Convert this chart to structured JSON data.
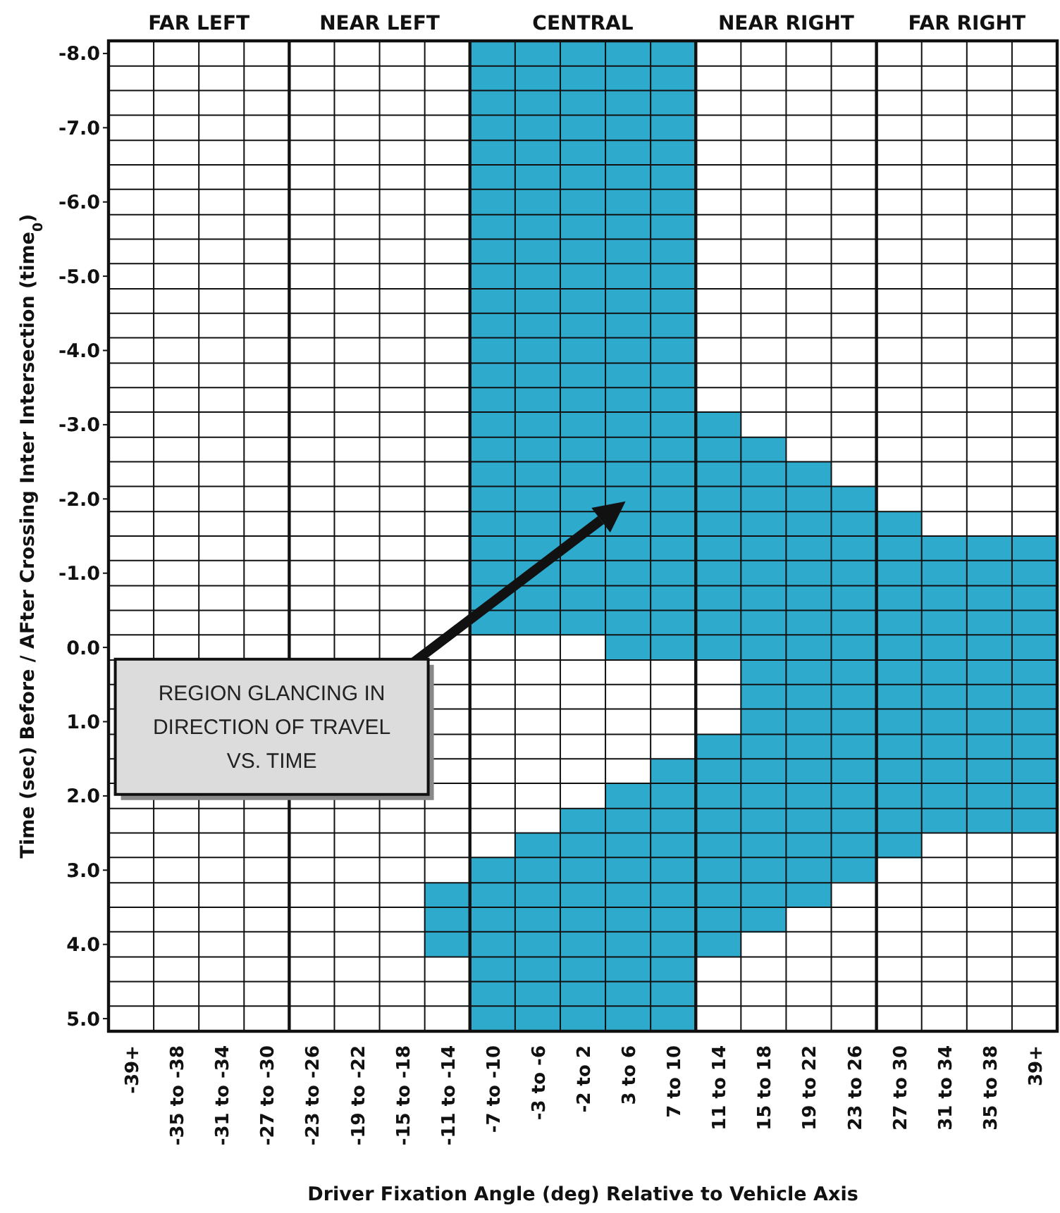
{
  "chart_data": {
    "type": "bar",
    "xlabel": "Driver Fixation Angle (deg) Relative to Vehicle Axis",
    "ylabel": "Time (sec) Before / AFter Crossing Inter Intersection (time$_{0}$)",
    "categories": [
      "-39+",
      "-35 to -38",
      "-31 to -34",
      "-27 to -30",
      "-23 to -26",
      "-19 to -22",
      "-15 to -18",
      "-11 to -14",
      "-7 to -10",
      "-3 to -6",
      "-2 to 2",
      "3 to 6",
      "7 to 10",
      "11 to 14",
      "15 to 18",
      "19 to 22",
      "23 to 26",
      "27 to 30",
      "31 to 34",
      "35 to 38",
      "39+"
    ],
    "series": [
      {
        "color": "#2eaacc",
        "values": [
          null,
          null,
          null,
          null,
          null,
          null,
          null,
          null,
          8.0,
          8.0,
          8.0,
          8.33,
          8.33,
          3.33,
          6.67,
          6.0,
          5.33,
          4.67,
          4.0,
          4.0,
          4.0
        ],
        "base": [
          null,
          null,
          null,
          null,
          null,
          null,
          null,
          null,
          -8.17,
          -8.17,
          -8.17,
          -8.17,
          -8.17,
          -3.17,
          -2.83,
          -2.5,
          -2.17,
          -1.83,
          -1.5,
          -1.5,
          -1.5
        ]
      },
      {
        "color": "#2eaacc",
        "values": [
          null,
          null,
          null,
          null,
          null,
          null,
          null,
          1.0,
          2.33,
          2.67,
          3.0,
          3.33,
          3.67,
          3.0,
          null,
          null,
          null,
          null,
          null,
          null,
          null
        ],
        "base": [
          null,
          null,
          null,
          null,
          null,
          null,
          null,
          3.17,
          2.83,
          2.5,
          2.17,
          1.83,
          1.5,
          1.17,
          null,
          null,
          null,
          null,
          null,
          null,
          null
        ]
      }
    ],
    "ylim": [
      5.17,
      -8.17
    ],
    "yticks": [
      {
        "value": -8,
        "label": "-8.0"
      },
      {
        "value": -7.83,
        "label": null
      },
      {
        "value": -7.5,
        "label": null
      },
      {
        "value": -7.17,
        "label": null
      },
      {
        "value": -7,
        "label": "-7.0"
      },
      {
        "value": -6.83,
        "label": null
      },
      {
        "value": -6.5,
        "label": null
      },
      {
        "value": -6.17,
        "label": null
      },
      {
        "value": -6,
        "label": "-6.0"
      },
      {
        "value": -5.83,
        "label": null
      },
      {
        "value": -5.5,
        "label": null
      },
      {
        "value": -5.17,
        "label": null
      },
      {
        "value": -5,
        "label": "-5.0"
      },
      {
        "value": -4.83,
        "label": null
      },
      {
        "value": -4.5,
        "label": null
      },
      {
        "value": -4.17,
        "label": null
      },
      {
        "value": -4,
        "label": "-4.0"
      },
      {
        "value": -3.83,
        "label": null
      },
      {
        "value": -3.5,
        "label": null
      },
      {
        "value": -3.17,
        "label": null
      },
      {
        "value": -3,
        "label": "-3.0"
      },
      {
        "value": -2.83,
        "label": null
      },
      {
        "value": -2.5,
        "label": null
      },
      {
        "value": -2.17,
        "label": null
      },
      {
        "value": -2,
        "label": "-2.0"
      },
      {
        "value": -1.83,
        "label": null
      },
      {
        "value": -1.5,
        "label": null
      },
      {
        "value": -1.17,
        "label": null
      },
      {
        "value": -1,
        "label": "-1.0"
      },
      {
        "value": -0.83,
        "label": null
      },
      {
        "value": -0.5,
        "label": null
      },
      {
        "value": -0.17,
        "label": null
      },
      {
        "value": 0,
        "label": "0.0"
      },
      {
        "value": 0.17,
        "label": null
      },
      {
        "value": 0.5,
        "label": null
      },
      {
        "value": 0.83,
        "label": null
      },
      {
        "value": 1,
        "label": "1.0"
      },
      {
        "value": 1.17,
        "label": null
      },
      {
        "value": 1.5,
        "label": null
      },
      {
        "value": 1.83,
        "label": null
      },
      {
        "value": 2,
        "label": "2.0"
      },
      {
        "value": 2.17,
        "label": null
      },
      {
        "value": 2.5,
        "label": null
      },
      {
        "value": 2.83,
        "label": null
      },
      {
        "value": 3,
        "label": "3.0"
      },
      {
        "value": 3.17,
        "label": null
      },
      {
        "value": 3.5,
        "label": null
      },
      {
        "value": 3.83,
        "label": null
      },
      {
        "value": 4,
        "label": "4.0"
      },
      {
        "value": 4.17,
        "label": null
      },
      {
        "value": 4.5,
        "label": null
      },
      {
        "value": 4.83,
        "label": null
      },
      {
        "value": 5,
        "label": "5.0"
      }
    ],
    "grid": true,
    "annotations": [
      "FAR LEFT",
      "NEAR LEFT",
      "CENTRAL",
      "NEAR RIGHT",
      "FAR RIGHT",
      "REGION GLANCING IN DIRECTION OF TRAVEL VS. TIME"
    ]
  }
}
